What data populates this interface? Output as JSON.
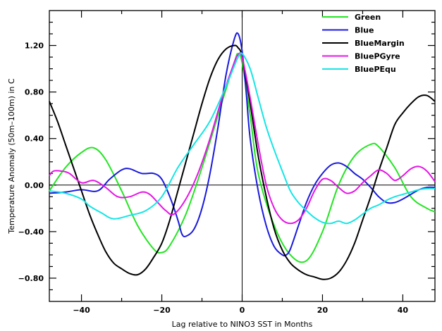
{
  "chart_data": {
    "type": "line",
    "title": "",
    "xlabel": "Lag relative to NINO3 SST in Months",
    "ylabel": "Temperature Anomaly (50m–100m) in C",
    "xlim": [
      -48,
      48
    ],
    "ylim": [
      -1.0,
      1.5
    ],
    "x_ticks": [
      -40,
      -20,
      0,
      20,
      40
    ],
    "x_tick_labels": [
      "−40",
      "−20",
      "0",
      "20",
      "40"
    ],
    "y_ticks": [
      -0.8,
      -0.4,
      0.0,
      0.4,
      0.8,
      1.2
    ],
    "y_tick_labels": [
      "−0.80",
      "−0.40",
      "0.00",
      "0.40",
      "0.80",
      "1.20"
    ],
    "reference_lines": {
      "x": 0,
      "y": 0
    },
    "grid": false,
    "legend_position": "top-right",
    "series": [
      {
        "name": "Green",
        "color": "#22e522",
        "x": [
          -48,
          -44,
          -40,
          -37,
          -34,
          -30,
          -26,
          -22,
          -20,
          -18,
          -14,
          -10,
          -6,
          -2,
          -1,
          0,
          2,
          4,
          8,
          12,
          16,
          20,
          24,
          28,
          32,
          34,
          38,
          42,
          46,
          48
        ],
        "y": [
          -0.05,
          0.15,
          0.28,
          0.32,
          0.22,
          -0.05,
          -0.35,
          -0.55,
          -0.58,
          -0.52,
          -0.25,
          0.15,
          0.6,
          1.05,
          1.13,
          1.05,
          0.6,
          0.1,
          -0.35,
          -0.6,
          -0.65,
          -0.4,
          0.0,
          0.25,
          0.35,
          0.33,
          0.15,
          -0.1,
          -0.2,
          -0.23
        ]
      },
      {
        "name": "Blue",
        "color": "#1a1adc",
        "x": [
          -48,
          -44,
          -40,
          -36,
          -33,
          -30,
          -28,
          -25,
          -22,
          -20,
          -18,
          -16,
          -15,
          -14,
          -12,
          -10,
          -8,
          -6,
          -4,
          -2,
          -1,
          0,
          1,
          2,
          4,
          6,
          8,
          10,
          11,
          12,
          14,
          16,
          18,
          20,
          22,
          24,
          26,
          28,
          30,
          32,
          34,
          36,
          38,
          40,
          42,
          44,
          46,
          48
        ],
        "y": [
          -0.07,
          -0.06,
          -0.04,
          -0.05,
          0.05,
          0.13,
          0.14,
          0.1,
          0.1,
          0.05,
          -0.1,
          -0.3,
          -0.42,
          -0.44,
          -0.38,
          -0.2,
          0.1,
          0.5,
          0.95,
          1.25,
          1.3,
          1.15,
          0.8,
          0.4,
          -0.05,
          -0.35,
          -0.53,
          -0.6,
          -0.6,
          -0.55,
          -0.35,
          -0.15,
          0.0,
          0.1,
          0.17,
          0.19,
          0.16,
          0.1,
          0.05,
          -0.02,
          -0.1,
          -0.15,
          -0.15,
          -0.12,
          -0.08,
          -0.04,
          -0.02,
          -0.02
        ]
      },
      {
        "name": "BlueMargin",
        "color": "#000000",
        "x": [
          -48,
          -46,
          -44,
          -42,
          -40,
          -38,
          -36,
          -34,
          -32,
          -30,
          -28,
          -26,
          -24,
          -22,
          -20,
          -18,
          -16,
          -14,
          -12,
          -10,
          -8,
          -6,
          -4,
          -2,
          -1,
          0,
          2,
          4,
          6,
          8,
          10,
          12,
          14,
          16,
          18,
          20,
          22,
          24,
          26,
          28,
          30,
          32,
          34,
          36,
          38,
          40,
          42,
          44,
          46,
          48
        ],
        "y": [
          0.72,
          0.55,
          0.35,
          0.15,
          -0.05,
          -0.25,
          -0.42,
          -0.57,
          -0.67,
          -0.72,
          -0.76,
          -0.77,
          -0.72,
          -0.62,
          -0.5,
          -0.3,
          -0.05,
          0.2,
          0.45,
          0.7,
          0.92,
          1.08,
          1.17,
          1.2,
          1.18,
          1.1,
          0.7,
          0.25,
          -0.1,
          -0.38,
          -0.56,
          -0.67,
          -0.73,
          -0.77,
          -0.79,
          -0.81,
          -0.8,
          -0.75,
          -0.65,
          -0.5,
          -0.3,
          -0.1,
          0.12,
          0.32,
          0.52,
          0.62,
          0.7,
          0.76,
          0.77,
          0.72
        ]
      },
      {
        "name": "BluePGyre",
        "color": "#e515e5",
        "x": [
          -48,
          -47,
          -45,
          -43,
          -40,
          -37,
          -34,
          -31,
          -28,
          -25,
          -23,
          -21,
          -19,
          -17,
          -14,
          -11,
          -8,
          -5,
          -2,
          -1,
          0,
          2,
          4,
          6,
          8,
          10,
          12,
          14,
          16,
          18,
          20,
          22,
          24,
          26,
          28,
          30,
          32,
          34,
          36,
          38,
          40,
          42,
          44,
          46,
          48
        ],
        "y": [
          0.08,
          0.12,
          0.12,
          0.1,
          0.02,
          0.04,
          -0.02,
          -0.1,
          -0.1,
          -0.06,
          -0.08,
          -0.15,
          -0.22,
          -0.25,
          -0.12,
          0.1,
          0.4,
          0.75,
          1.05,
          1.12,
          1.1,
          0.75,
          0.35,
          0.0,
          -0.2,
          -0.3,
          -0.33,
          -0.3,
          -0.2,
          -0.05,
          0.05,
          0.04,
          -0.02,
          -0.07,
          -0.05,
          0.02,
          0.08,
          0.13,
          0.1,
          0.04,
          0.08,
          0.14,
          0.16,
          0.12,
          0.03
        ]
      },
      {
        "name": "BluePEqu",
        "color": "#15e5e5",
        "x": [
          -48,
          -44,
          -40,
          -38,
          -35,
          -32,
          -28,
          -24,
          -20,
          -16,
          -12,
          -8,
          -4,
          -2,
          -1,
          0,
          2,
          4,
          6,
          8,
          10,
          12,
          14,
          16,
          18,
          20,
          22,
          24,
          26,
          28,
          30,
          32,
          34,
          36,
          38,
          40,
          42,
          44,
          46,
          48
        ],
        "y": [
          -0.05,
          -0.07,
          -0.12,
          -0.18,
          -0.24,
          -0.29,
          -0.26,
          -0.22,
          -0.1,
          0.15,
          0.35,
          0.55,
          0.85,
          1.02,
          1.1,
          1.13,
          1.0,
          0.75,
          0.5,
          0.3,
          0.12,
          -0.05,
          -0.15,
          -0.22,
          -0.28,
          -0.32,
          -0.33,
          -0.31,
          -0.33,
          -0.3,
          -0.25,
          -0.2,
          -0.17,
          -0.13,
          -0.1,
          -0.08,
          -0.06,
          -0.04,
          -0.03,
          -0.03
        ]
      }
    ]
  }
}
